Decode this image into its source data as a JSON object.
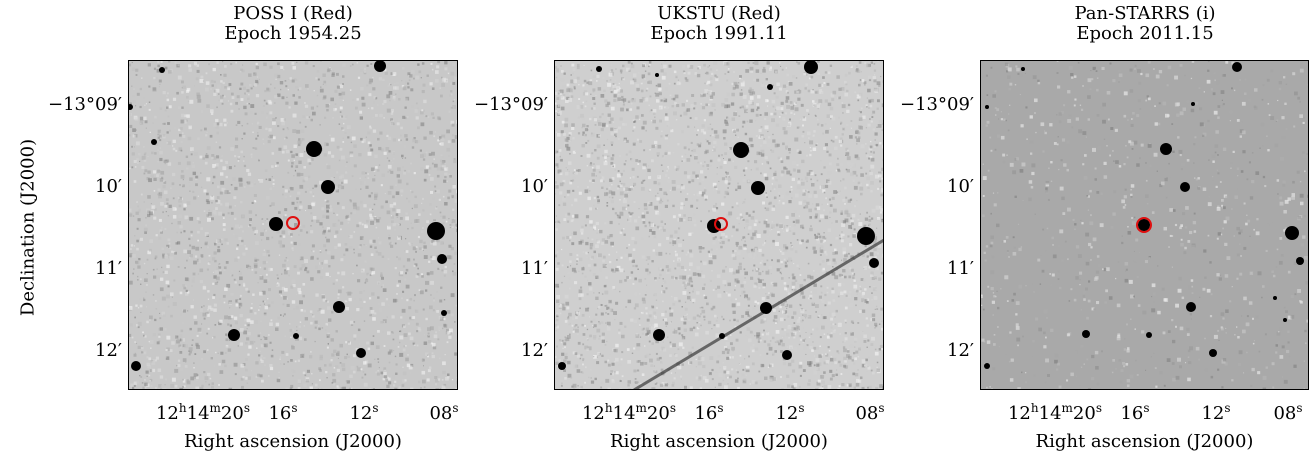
{
  "ylabel": "Declination (J2000)",
  "panels": [
    {
      "title": "POSS I (Red)",
      "epoch": "Epoch 1954.25",
      "xlabel": "Right ascension (J2000)",
      "yticks": [
        "−13°09′",
        "10′",
        "11′",
        "12′"
      ],
      "xticks": [
        {
          "h": "12",
          "m": "14",
          "s": "20"
        },
        {
          "s": "16"
        },
        {
          "s": "12"
        },
        {
          "s": "08"
        }
      ],
      "background": "#c8c8c8",
      "marker_color": "#e01010"
    },
    {
      "title": "UKSTU (Red)",
      "epoch": "Epoch 1991.11",
      "xlabel": "Right ascension (J2000)",
      "yticks": [
        "−13°09′",
        "10′",
        "11′",
        "12′"
      ],
      "xticks": [
        {
          "h": "12",
          "m": "14",
          "s": "20"
        },
        {
          "s": "16"
        },
        {
          "s": "12"
        },
        {
          "s": "08"
        }
      ],
      "background": "#cfcfcf",
      "marker_color": "#e01010"
    },
    {
      "title": "Pan-STARRS (i)",
      "epoch": "Epoch 2011.15",
      "xlabel": "Right ascension (J2000)",
      "yticks": [
        "−13°09′",
        "10′",
        "11′",
        "12′"
      ],
      "xticks": [
        {
          "h": "12",
          "m": "14",
          "s": "20"
        },
        {
          "s": "16"
        },
        {
          "s": "12"
        },
        {
          "s": "08"
        }
      ],
      "background": "#a9a9a9",
      "marker_color": "#e01010"
    }
  ]
}
